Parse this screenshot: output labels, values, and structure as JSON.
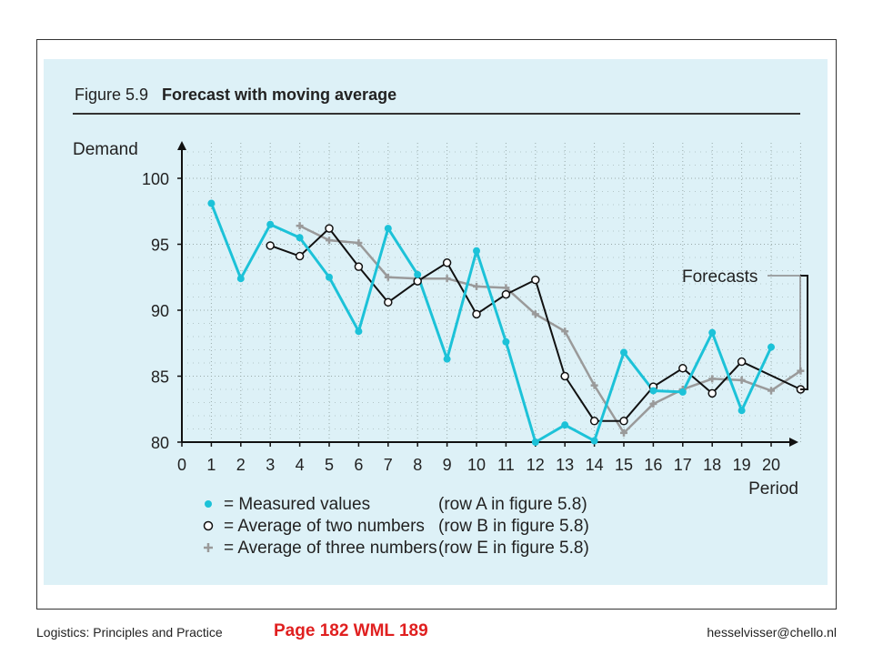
{
  "footer": {
    "left": "Logistics: Principles and Practice",
    "center": "Page 182 WML 189",
    "right": "hesselvisser@chello.nl"
  },
  "colors": {
    "panel_background": "#ddf1f7",
    "measured": "#1cc2d8",
    "average_two": "#111111",
    "average_three": "#9a9a9a",
    "page_label": "#e02020"
  },
  "chart_data": {
    "type": "line",
    "figure_label": "Figure 5.9",
    "title": "Forecast with moving average",
    "xlabel": "Period",
    "ylabel": "Demand",
    "xlim": [
      0,
      21
    ],
    "ylim": [
      80,
      100
    ],
    "x_ticks": [
      0,
      1,
      2,
      3,
      4,
      5,
      6,
      7,
      8,
      9,
      10,
      11,
      12,
      13,
      14,
      15,
      16,
      17,
      18,
      19,
      20
    ],
    "y_ticks": [
      80,
      85,
      90,
      95,
      100
    ],
    "grid": true,
    "annotation": "Forecasts",
    "series": [
      {
        "name": "= Measured values",
        "source": "(row A in figure 5.8)",
        "marker": "filled-circle",
        "x": [
          1,
          2,
          3,
          4,
          5,
          6,
          7,
          8,
          9,
          10,
          11,
          12,
          13,
          14,
          15,
          16,
          17,
          18,
          19,
          20
        ],
        "y": [
          98.1,
          92.4,
          96.5,
          95.5,
          92.5,
          88.4,
          96.2,
          92.7,
          86.3,
          94.5,
          87.6,
          80.0,
          81.3,
          80.1,
          86.8,
          83.9,
          83.8,
          88.3,
          82.4,
          87.2
        ]
      },
      {
        "name": "= Average of two numbers",
        "source": "(row B in figure 5.8)",
        "marker": "open-circle",
        "x": [
          3,
          4,
          5,
          6,
          7,
          8,
          9,
          10,
          11,
          12,
          13,
          14,
          15,
          16,
          17,
          18,
          19,
          21
        ],
        "y": [
          94.9,
          94.1,
          96.2,
          93.3,
          90.6,
          92.2,
          93.6,
          89.7,
          91.2,
          92.3,
          85.0,
          81.6,
          81.6,
          84.2,
          85.6,
          83.7,
          86.1,
          84.0
        ]
      },
      {
        "name": "= Average of three numbers",
        "source": "(row E in figure 5.8)",
        "marker": "plus",
        "x": [
          4,
          5,
          6,
          7,
          8,
          9,
          10,
          11,
          12,
          13,
          14,
          15,
          16,
          17,
          18,
          19,
          20,
          21
        ],
        "y": [
          96.4,
          95.3,
          95.1,
          92.5,
          92.4,
          92.4,
          91.8,
          91.7,
          89.7,
          88.4,
          84.3,
          80.7,
          82.9,
          84.0,
          84.8,
          84.7,
          83.9,
          85.4
        ]
      }
    ]
  }
}
